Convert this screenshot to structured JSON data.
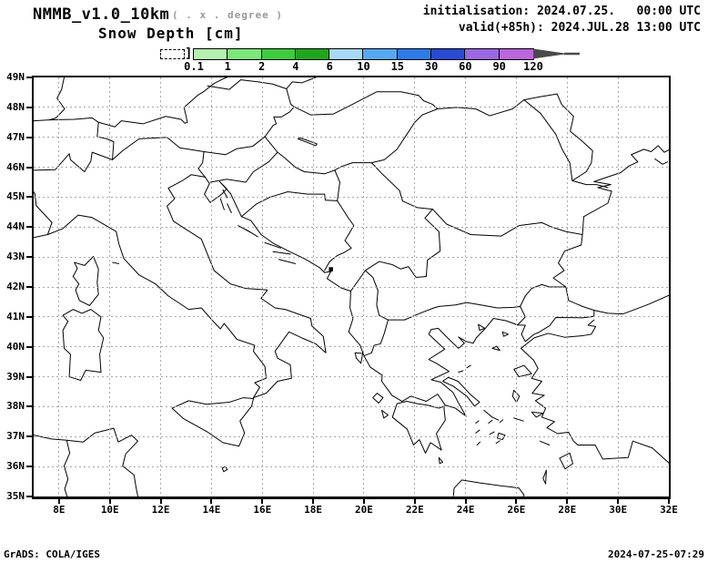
{
  "header": {
    "model": "NMMB_v1.0_10km",
    "model_note": "( . x . degree )",
    "variable": "Snow Depth [cm]",
    "init_line": "initialisation: 2024.07.25.   00:00 UTC",
    "valid_line": "valid(+85h): 2024.JUL.28 13:00 UTC"
  },
  "legend": {
    "title": "Snow Depth [cm]",
    "tick_labels": [
      "0.1",
      "1",
      "2",
      "4",
      "6",
      "10",
      "15",
      "30",
      "60",
      "90",
      "120"
    ],
    "segment_colors": [
      "#b4f0b0",
      "#7ce87c",
      "#3ecc3e",
      "#1fa61f",
      "#a8daf8",
      "#57a8f4",
      "#2e7ae8",
      "#2a4ad2",
      "#9a68e4",
      "#ba66dc"
    ],
    "arrow_color": "#4a4a4a",
    "bracket": "]"
  },
  "map": {
    "grid_color": "#a8a8a8",
    "frame_color": "#000000",
    "lat_ticks": [
      {
        "value": 49,
        "label": "49N"
      },
      {
        "value": 48,
        "label": "48N"
      },
      {
        "value": 47,
        "label": "47N"
      },
      {
        "value": 46,
        "label": "46N"
      },
      {
        "value": 45,
        "label": "45N"
      },
      {
        "value": 44,
        "label": "44N"
      },
      {
        "value": 43,
        "label": "43N"
      },
      {
        "value": 42,
        "label": "42N"
      },
      {
        "value": 41,
        "label": "41N"
      },
      {
        "value": 40,
        "label": "40N"
      },
      {
        "value": 39,
        "label": "39N"
      },
      {
        "value": 38,
        "label": "38N"
      },
      {
        "value": 37,
        "label": "37N"
      },
      {
        "value": 36,
        "label": "36N"
      },
      {
        "value": 35,
        "label": "35N"
      }
    ],
    "lon_ticks": [
      {
        "value": 8,
        "label": "8E"
      },
      {
        "value": 10,
        "label": "10E"
      },
      {
        "value": 12,
        "label": "12E"
      },
      {
        "value": 14,
        "label": "14E"
      },
      {
        "value": 16,
        "label": "16E"
      },
      {
        "value": 18,
        "label": "18E"
      },
      {
        "value": 20,
        "label": "20E"
      },
      {
        "value": 22,
        "label": "22E"
      },
      {
        "value": 24,
        "label": "24E"
      },
      {
        "value": 26,
        "label": "26E"
      },
      {
        "value": 28,
        "label": "28E"
      },
      {
        "value": 30,
        "label": "30E"
      },
      {
        "value": 32,
        "label": "32E"
      }
    ]
  },
  "footer": {
    "left": "GrADS: COLA/IGES",
    "right": "2024-07-25-07:29"
  }
}
